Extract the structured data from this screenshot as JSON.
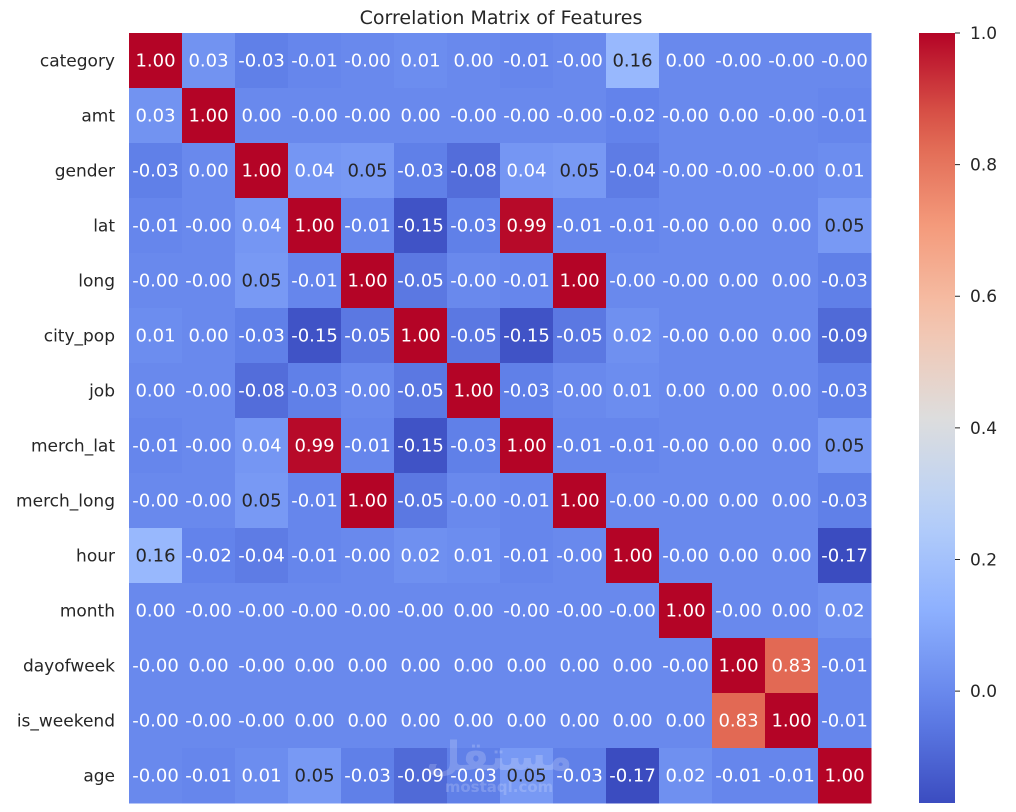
{
  "chart_data": {
    "type": "heatmap",
    "title": "Correlation Matrix of Features",
    "labels": [
      "category",
      "amt",
      "gender",
      "lat",
      "long",
      "city_pop",
      "job",
      "merch_lat",
      "merch_long",
      "hour",
      "month",
      "dayofweek",
      "is_weekend",
      "age"
    ],
    "values": [
      [
        "1.00",
        "0.03",
        "-0.03",
        "-0.01",
        "-0.00",
        "0.01",
        "0.00",
        "-0.01",
        "-0.00",
        "0.16",
        "0.00",
        "-0.00",
        "-0.00",
        "-0.00"
      ],
      [
        "0.03",
        "1.00",
        "0.00",
        "-0.00",
        "-0.00",
        "0.00",
        "-0.00",
        "-0.00",
        "-0.00",
        "-0.02",
        "-0.00",
        "0.00",
        "-0.00",
        "-0.01"
      ],
      [
        "-0.03",
        "0.00",
        "1.00",
        "0.04",
        "0.05",
        "-0.03",
        "-0.08",
        "0.04",
        "0.05",
        "-0.04",
        "-0.00",
        "-0.00",
        "-0.00",
        "0.01"
      ],
      [
        "-0.01",
        "-0.00",
        "0.04",
        "1.00",
        "-0.01",
        "-0.15",
        "-0.03",
        "0.99",
        "-0.01",
        "-0.01",
        "-0.00",
        "0.00",
        "0.00",
        "0.05"
      ],
      [
        "-0.00",
        "-0.00",
        "0.05",
        "-0.01",
        "1.00",
        "-0.05",
        "-0.00",
        "-0.01",
        "1.00",
        "-0.00",
        "-0.00",
        "0.00",
        "0.00",
        "-0.03"
      ],
      [
        "0.01",
        "0.00",
        "-0.03",
        "-0.15",
        "-0.05",
        "1.00",
        "-0.05",
        "-0.15",
        "-0.05",
        "0.02",
        "-0.00",
        "0.00",
        "0.00",
        "-0.09"
      ],
      [
        "0.00",
        "-0.00",
        "-0.08",
        "-0.03",
        "-0.00",
        "-0.05",
        "1.00",
        "-0.03",
        "-0.00",
        "0.01",
        "0.00",
        "0.00",
        "0.00",
        "-0.03"
      ],
      [
        "-0.01",
        "-0.00",
        "0.04",
        "0.99",
        "-0.01",
        "-0.15",
        "-0.03",
        "1.00",
        "-0.01",
        "-0.01",
        "-0.00",
        "0.00",
        "0.00",
        "0.05"
      ],
      [
        "-0.00",
        "-0.00",
        "0.05",
        "-0.01",
        "1.00",
        "-0.05",
        "-0.00",
        "-0.01",
        "1.00",
        "-0.00",
        "-0.00",
        "0.00",
        "0.00",
        "-0.03"
      ],
      [
        "0.16",
        "-0.02",
        "-0.04",
        "-0.01",
        "-0.00",
        "0.02",
        "0.01",
        "-0.01",
        "-0.00",
        "1.00",
        "-0.00",
        "0.00",
        "0.00",
        "-0.17"
      ],
      [
        "0.00",
        "-0.00",
        "-0.00",
        "-0.00",
        "-0.00",
        "-0.00",
        "0.00",
        "-0.00",
        "-0.00",
        "-0.00",
        "1.00",
        "-0.00",
        "0.00",
        "0.02"
      ],
      [
        "-0.00",
        "0.00",
        "-0.00",
        "0.00",
        "0.00",
        "0.00",
        "0.00",
        "0.00",
        "0.00",
        "0.00",
        "-0.00",
        "1.00",
        "0.83",
        "-0.01"
      ],
      [
        "-0.00",
        "-0.00",
        "-0.00",
        "0.00",
        "0.00",
        "0.00",
        "0.00",
        "0.00",
        "0.00",
        "0.00",
        "0.00",
        "0.83",
        "1.00",
        "-0.01"
      ],
      [
        "-0.00",
        "-0.01",
        "0.01",
        "0.05",
        "-0.03",
        "-0.09",
        "-0.03",
        "0.05",
        "-0.03",
        "-0.17",
        "0.02",
        "-0.01",
        "-0.01",
        "1.00"
      ]
    ],
    "colormap": "coolwarm",
    "vmin": -0.17,
    "vmax": 1.0,
    "colorbar_ticks": [
      "0.0",
      "0.2",
      "0.4",
      "0.6",
      "0.8",
      "1.0"
    ],
    "annotations": true
  },
  "watermark": {
    "main": "مستقل",
    "sub": "mostaql.com"
  }
}
